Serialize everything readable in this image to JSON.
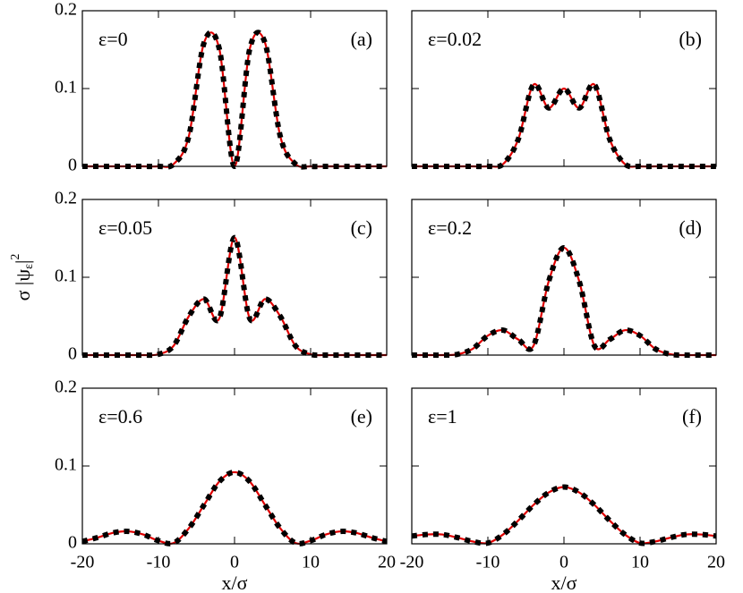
{
  "ylabel": {
    "text": "σ |ψ",
    "sub": "ε",
    "close": "|",
    "sup": "2"
  },
  "chart_data": [
    {
      "type": "line",
      "label": "ε=0",
      "panel_label": "(a)",
      "x": [
        -20,
        -18,
        -16,
        -14,
        -12,
        -10,
        -8,
        -6,
        -4,
        -2,
        0,
        2,
        4,
        6,
        8,
        10,
        12,
        14,
        16,
        18,
        20
      ],
      "series": [
        {
          "color": "#e00000",
          "style": "solid",
          "values": [
            0,
            0,
            0,
            0,
            0,
            0,
            0.003,
            0.039,
            0.159,
            0.151,
            0,
            0.151,
            0.159,
            0.039,
            0.003,
            0,
            0,
            0,
            0,
            0,
            0
          ]
        },
        {
          "color": "#000000",
          "style": "dotted",
          "values": [
            0,
            0,
            0,
            0,
            0,
            0,
            0.003,
            0.039,
            0.159,
            0.151,
            0,
            0.151,
            0.159,
            0.039,
            0.003,
            0,
            0,
            0,
            0,
            0,
            0
          ]
        }
      ],
      "xlim": [
        -20,
        20
      ],
      "ylim": [
        0,
        0.2
      ],
      "xticks": [
        -20,
        -10,
        0,
        10,
        20
      ],
      "yticks": [
        0,
        0.1,
        0.2
      ],
      "show_xtick_labels": false,
      "show_ytick_labels": true
    },
    {
      "type": "line",
      "label": "ε=0.02",
      "panel_label": "(b)",
      "x": [
        -20,
        -18,
        -16,
        -14,
        -12,
        -10,
        -8,
        -6,
        -4,
        -2,
        0,
        2,
        4,
        6,
        8,
        10,
        12,
        14,
        16,
        18,
        20
      ],
      "series": [
        {
          "color": "#e00000",
          "style": "solid",
          "values": [
            0,
            0,
            0,
            0,
            0,
            0,
            0.003,
            0.035,
            0.105,
            0.075,
            0.1,
            0.075,
            0.105,
            0.035,
            0.003,
            0,
            0,
            0,
            0,
            0,
            0
          ]
        },
        {
          "color": "#000000",
          "style": "dotted",
          "values": [
            0,
            0,
            0,
            0,
            0,
            0,
            0.003,
            0.035,
            0.105,
            0.075,
            0.1,
            0.075,
            0.105,
            0.035,
            0.003,
            0,
            0,
            0,
            0,
            0,
            0
          ]
        }
      ],
      "xlim": [
        -20,
        20
      ],
      "ylim": [
        0,
        0.2
      ],
      "xticks": [
        -20,
        -10,
        0,
        10,
        20
      ],
      "yticks": [
        0,
        0.1,
        0.2
      ],
      "show_xtick_labels": false,
      "show_ytick_labels": false
    },
    {
      "type": "line",
      "label": "ε=0.05",
      "panel_label": "(c)",
      "x": [
        -20,
        -18,
        -16,
        -14,
        -12,
        -10,
        -8,
        -6,
        -4,
        -2,
        0,
        2,
        4,
        6,
        8,
        10,
        12,
        14,
        16,
        18,
        20
      ],
      "series": [
        {
          "color": "#e00000",
          "style": "solid",
          "values": [
            0,
            0,
            0,
            0,
            0,
            0.001,
            0.012,
            0.05,
            0.072,
            0.047,
            0.151,
            0.047,
            0.072,
            0.05,
            0.012,
            0.001,
            0,
            0,
            0,
            0,
            0
          ]
        },
        {
          "color": "#000000",
          "style": "dotted",
          "values": [
            0,
            0,
            0,
            0,
            0,
            0.001,
            0.012,
            0.05,
            0.072,
            0.047,
            0.151,
            0.047,
            0.072,
            0.05,
            0.012,
            0.001,
            0,
            0,
            0,
            0,
            0
          ]
        }
      ],
      "xlim": [
        -20,
        20
      ],
      "ylim": [
        0,
        0.2
      ],
      "xticks": [
        -20,
        -10,
        0,
        10,
        20
      ],
      "yticks": [
        0,
        0.1,
        0.2
      ],
      "show_xtick_labels": false,
      "show_ytick_labels": true
    },
    {
      "type": "line",
      "label": "ε=0.2",
      "panel_label": "(d)",
      "x": [
        -20,
        -18,
        -16,
        -14,
        -12,
        -10,
        -8,
        -6,
        -4,
        -2,
        0,
        2,
        4,
        6,
        8,
        10,
        12,
        14,
        16,
        18,
        20
      ],
      "series": [
        {
          "color": "#e00000",
          "style": "solid",
          "values": [
            0,
            0,
            0,
            0.001,
            0.008,
            0.025,
            0.032,
            0.02,
            0.012,
            0.095,
            0.138,
            0.095,
            0.012,
            0.02,
            0.032,
            0.025,
            0.008,
            0.001,
            0,
            0,
            0
          ]
        },
        {
          "color": "#000000",
          "style": "dotted",
          "values": [
            0,
            0,
            0,
            0.001,
            0.008,
            0.025,
            0.032,
            0.02,
            0.012,
            0.095,
            0.138,
            0.095,
            0.012,
            0.02,
            0.032,
            0.025,
            0.008,
            0.001,
            0,
            0,
            0
          ]
        }
      ],
      "xlim": [
        -20,
        20
      ],
      "ylim": [
        0,
        0.2
      ],
      "xticks": [
        -20,
        -10,
        0,
        10,
        20
      ],
      "yticks": [
        0,
        0.1,
        0.2
      ],
      "show_xtick_labels": false,
      "show_ytick_labels": false
    },
    {
      "type": "line",
      "label": "ε=0.6",
      "panel_label": "(e)",
      "xlabel": "x/σ",
      "x": [
        -20,
        -18,
        -16,
        -14,
        -12,
        -10,
        -8,
        -6,
        -4,
        -2,
        0,
        2,
        4,
        6,
        8,
        10,
        12,
        14,
        16,
        18,
        20
      ],
      "series": [
        {
          "color": "#e00000",
          "style": "solid",
          "values": [
            0.003,
            0.008,
            0.014,
            0.016,
            0.012,
            0.004,
            0.001,
            0.02,
            0.05,
            0.08,
            0.092,
            0.08,
            0.05,
            0.02,
            0.001,
            0.004,
            0.012,
            0.016,
            0.014,
            0.008,
            0.003
          ]
        },
        {
          "color": "#000000",
          "style": "dotted",
          "values": [
            0.003,
            0.008,
            0.014,
            0.016,
            0.012,
            0.004,
            0.001,
            0.02,
            0.05,
            0.08,
            0.092,
            0.08,
            0.05,
            0.02,
            0.001,
            0.004,
            0.012,
            0.016,
            0.014,
            0.008,
            0.003
          ]
        }
      ],
      "xlim": [
        -20,
        20
      ],
      "ylim": [
        0,
        0.2
      ],
      "xticks": [
        -20,
        -10,
        0,
        10,
        20
      ],
      "yticks": [
        0,
        0.1,
        0.2
      ],
      "show_xtick_labels": true,
      "show_ytick_labels": true
    },
    {
      "type": "line",
      "label": "ε=1",
      "panel_label": "(f)",
      "xlabel": "x/σ",
      "x": [
        -20,
        -18,
        -16,
        -14,
        -12,
        -10,
        -8,
        -6,
        -4,
        -2,
        0,
        2,
        4,
        6,
        8,
        10,
        12,
        14,
        16,
        18,
        20
      ],
      "series": [
        {
          "color": "#e00000",
          "style": "solid",
          "values": [
            0.01,
            0.012,
            0.012,
            0.008,
            0.003,
            0.001,
            0.012,
            0.03,
            0.05,
            0.066,
            0.073,
            0.066,
            0.05,
            0.03,
            0.012,
            0.001,
            0.003,
            0.008,
            0.012,
            0.012,
            0.01
          ]
        },
        {
          "color": "#000000",
          "style": "dotted",
          "values": [
            0.01,
            0.012,
            0.012,
            0.008,
            0.003,
            0.001,
            0.012,
            0.03,
            0.05,
            0.066,
            0.073,
            0.066,
            0.05,
            0.03,
            0.012,
            0.001,
            0.003,
            0.008,
            0.012,
            0.012,
            0.01
          ]
        }
      ],
      "xlim": [
        -20,
        20
      ],
      "ylim": [
        0,
        0.2
      ],
      "xticks": [
        -20,
        -10,
        0,
        10,
        20
      ],
      "yticks": [
        0,
        0.1,
        0.2
      ],
      "show_xtick_labels": true,
      "show_ytick_labels": false
    }
  ]
}
